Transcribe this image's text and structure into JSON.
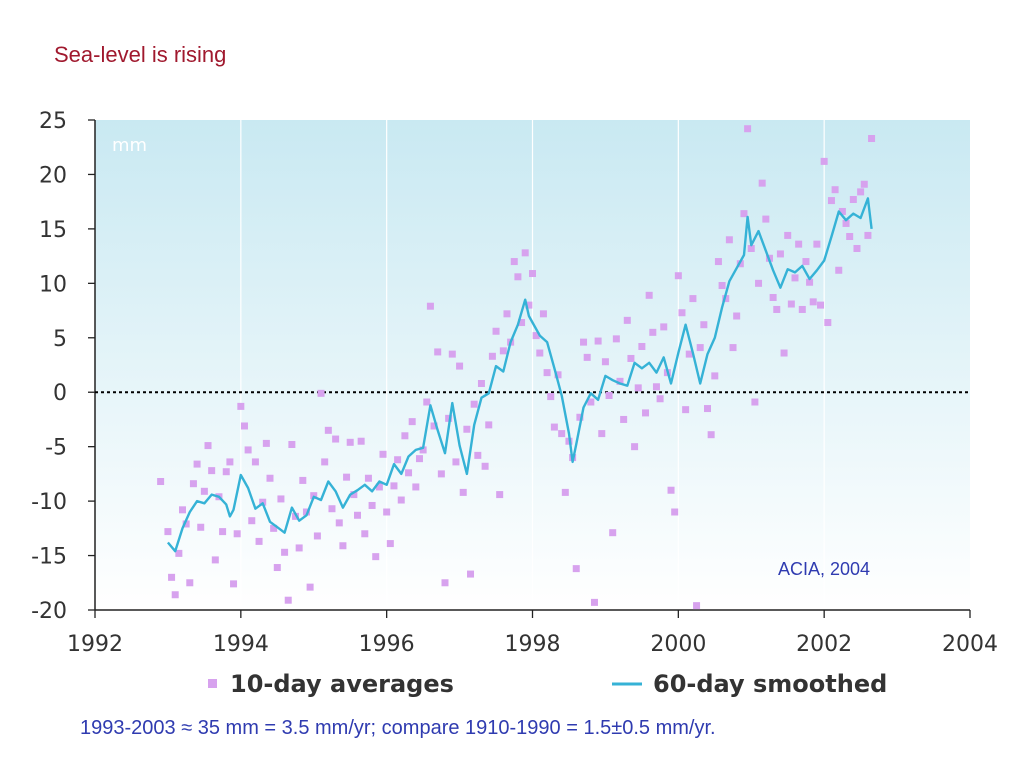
{
  "slide": {
    "title": "Sea-level is rising",
    "footnote": "1993-2003 ≈ 35 mm = 3.5 mm/yr;  compare 1910-1990 = 1.5±0.5 mm/yr."
  },
  "colors": {
    "title": "#a0192e",
    "footnote": "#2f3bb0",
    "points": "#d7a2ee",
    "line": "#35b2d6",
    "plot_top": "#c9e9f2",
    "plot_bottom": "#ffffff",
    "zero_line": "#000000"
  },
  "chart_data": {
    "type": "scatter",
    "ylabel": "mm",
    "source_label": "ACIA, 2004",
    "xlim": [
      1992,
      2004
    ],
    "ylim": [
      -20,
      25
    ],
    "x_ticks": [
      "1992",
      "1994",
      "1996",
      "1998",
      "2000",
      "2002",
      "2004"
    ],
    "x_tick_values": [
      1992,
      1994,
      1996,
      1998,
      2000,
      2002,
      2004
    ],
    "y_ticks": [
      "25",
      "20",
      "15",
      "10",
      "5",
      "0",
      "-5",
      "-10",
      "-15",
      "-20"
    ],
    "y_tick_values": [
      25,
      20,
      15,
      10,
      5,
      0,
      -5,
      -10,
      -15,
      -20
    ],
    "reference_line": {
      "y": 0,
      "style": "dotted"
    },
    "legend": {
      "position": "bottom"
    },
    "series": [
      {
        "name": "10-day averages",
        "kind": "scatter",
        "points": [
          [
            1992.9,
            -8.2
          ],
          [
            1993.0,
            -12.8
          ],
          [
            1993.05,
            -17.0
          ],
          [
            1993.1,
            -18.6
          ],
          [
            1993.15,
            -14.8
          ],
          [
            1993.2,
            -10.8
          ],
          [
            1993.25,
            -12.1
          ],
          [
            1993.3,
            -17.5
          ],
          [
            1993.35,
            -8.4
          ],
          [
            1993.4,
            -6.6
          ],
          [
            1993.45,
            -12.4
          ],
          [
            1993.5,
            -9.1
          ],
          [
            1993.55,
            -4.9
          ],
          [
            1993.6,
            -7.2
          ],
          [
            1993.65,
            -15.4
          ],
          [
            1993.7,
            -9.6
          ],
          [
            1993.75,
            -12.8
          ],
          [
            1993.8,
            -7.3
          ],
          [
            1993.85,
            -6.4
          ],
          [
            1993.9,
            -17.6
          ],
          [
            1993.95,
            -13.0
          ],
          [
            1994.0,
            -1.3
          ],
          [
            1994.05,
            -3.1
          ],
          [
            1994.1,
            -5.3
          ],
          [
            1994.15,
            -11.8
          ],
          [
            1994.2,
            -6.4
          ],
          [
            1994.25,
            -13.7
          ],
          [
            1994.3,
            -10.1
          ],
          [
            1994.35,
            -4.7
          ],
          [
            1994.4,
            -7.9
          ],
          [
            1994.45,
            -12.5
          ],
          [
            1994.5,
            -16.1
          ],
          [
            1994.55,
            -9.8
          ],
          [
            1994.6,
            -14.7
          ],
          [
            1994.65,
            -19.1
          ],
          [
            1994.7,
            -4.8
          ],
          [
            1994.75,
            -11.4
          ],
          [
            1994.8,
            -14.3
          ],
          [
            1994.85,
            -8.1
          ],
          [
            1994.9,
            -11.0
          ],
          [
            1994.95,
            -17.9
          ],
          [
            1995.0,
            -9.5
          ],
          [
            1995.05,
            -13.2
          ],
          [
            1995.1,
            -0.1
          ],
          [
            1995.15,
            -6.4
          ],
          [
            1995.2,
            -3.5
          ],
          [
            1995.25,
            -10.7
          ],
          [
            1995.3,
            -4.3
          ],
          [
            1995.35,
            -12.0
          ],
          [
            1995.4,
            -14.1
          ],
          [
            1995.45,
            -7.8
          ],
          [
            1995.5,
            -4.6
          ],
          [
            1995.55,
            -9.4
          ],
          [
            1995.6,
            -11.3
          ],
          [
            1995.65,
            -4.5
          ],
          [
            1995.7,
            -13.0
          ],
          [
            1995.75,
            -7.9
          ],
          [
            1995.8,
            -10.4
          ],
          [
            1995.85,
            -15.1
          ],
          [
            1995.9,
            -8.7
          ],
          [
            1995.95,
            -5.7
          ],
          [
            1996.0,
            -11.0
          ],
          [
            1996.05,
            -13.9
          ],
          [
            1996.1,
            -8.6
          ],
          [
            1996.15,
            -6.2
          ],
          [
            1996.2,
            -9.9
          ],
          [
            1996.25,
            -4.0
          ],
          [
            1996.3,
            -7.4
          ],
          [
            1996.35,
            -2.7
          ],
          [
            1996.4,
            -8.7
          ],
          [
            1996.45,
            -6.1
          ],
          [
            1996.5,
            -5.3
          ],
          [
            1996.55,
            -0.9
          ],
          [
            1996.6,
            7.9
          ],
          [
            1996.65,
            -3.1
          ],
          [
            1996.7,
            3.7
          ],
          [
            1996.75,
            -7.5
          ],
          [
            1996.8,
            -17.5
          ],
          [
            1996.85,
            -2.4
          ],
          [
            1996.9,
            3.5
          ],
          [
            1996.95,
            -6.4
          ],
          [
            1997.0,
            2.4
          ],
          [
            1997.05,
            -9.2
          ],
          [
            1997.1,
            -3.4
          ],
          [
            1997.15,
            -16.7
          ],
          [
            1997.2,
            -1.1
          ],
          [
            1997.25,
            -5.8
          ],
          [
            1997.3,
            0.8
          ],
          [
            1997.35,
            -6.8
          ],
          [
            1997.4,
            -3.0
          ],
          [
            1997.45,
            3.3
          ],
          [
            1997.5,
            5.6
          ],
          [
            1997.55,
            -9.4
          ],
          [
            1997.6,
            3.8
          ],
          [
            1997.65,
            7.2
          ],
          [
            1997.7,
            4.6
          ],
          [
            1997.75,
            12.0
          ],
          [
            1997.8,
            10.6
          ],
          [
            1997.85,
            6.4
          ],
          [
            1997.9,
            12.8
          ],
          [
            1997.95,
            8.0
          ],
          [
            1998.0,
            10.9
          ],
          [
            1998.05,
            5.2
          ],
          [
            1998.1,
            3.6
          ],
          [
            1998.15,
            7.2
          ],
          [
            1998.2,
            1.8
          ],
          [
            1998.25,
            -0.4
          ],
          [
            1998.3,
            -3.2
          ],
          [
            1998.35,
            1.6
          ],
          [
            1998.4,
            -3.8
          ],
          [
            1998.45,
            -9.2
          ],
          [
            1998.5,
            -4.5
          ],
          [
            1998.55,
            -6.0
          ],
          [
            1998.6,
            -16.2
          ],
          [
            1998.65,
            -2.3
          ],
          [
            1998.7,
            4.6
          ],
          [
            1998.75,
            3.2
          ],
          [
            1998.8,
            -0.9
          ],
          [
            1998.85,
            -19.3
          ],
          [
            1998.9,
            4.7
          ],
          [
            1998.95,
            -3.8
          ],
          [
            1999.0,
            2.8
          ],
          [
            1999.05,
            -0.3
          ],
          [
            1999.1,
            -12.9
          ],
          [
            1999.15,
            4.9
          ],
          [
            1999.2,
            1.0
          ],
          [
            1999.25,
            -2.5
          ],
          [
            1999.3,
            6.6
          ],
          [
            1999.35,
            3.1
          ],
          [
            1999.4,
            -5.0
          ],
          [
            1999.45,
            0.4
          ],
          [
            1999.5,
            4.2
          ],
          [
            1999.55,
            -1.9
          ],
          [
            1999.6,
            8.9
          ],
          [
            1999.65,
            5.5
          ],
          [
            1999.7,
            0.5
          ],
          [
            1999.75,
            -0.6
          ],
          [
            1999.8,
            6.0
          ],
          [
            1999.85,
            1.8
          ],
          [
            1999.9,
            -9.0
          ],
          [
            1999.95,
            -11.0
          ],
          [
            2000.0,
            10.7
          ],
          [
            2000.05,
            7.3
          ],
          [
            2000.1,
            -1.6
          ],
          [
            2000.15,
            3.5
          ],
          [
            2000.2,
            8.6
          ],
          [
            2000.25,
            -19.6
          ],
          [
            2000.3,
            4.1
          ],
          [
            2000.35,
            6.2
          ],
          [
            2000.4,
            -1.5
          ],
          [
            2000.45,
            -3.9
          ],
          [
            2000.5,
            1.5
          ],
          [
            2000.55,
            12.0
          ],
          [
            2000.6,
            9.8
          ],
          [
            2000.65,
            8.6
          ],
          [
            2000.7,
            14.0
          ],
          [
            2000.75,
            4.1
          ],
          [
            2000.8,
            7.0
          ],
          [
            2000.85,
            11.8
          ],
          [
            2000.9,
            16.4
          ],
          [
            2000.95,
            24.2
          ],
          [
            2001.0,
            13.2
          ],
          [
            2001.05,
            -0.9
          ],
          [
            2001.1,
            10.0
          ],
          [
            2001.15,
            19.2
          ],
          [
            2001.2,
            15.9
          ],
          [
            2001.25,
            12.3
          ],
          [
            2001.3,
            8.7
          ],
          [
            2001.35,
            7.6
          ],
          [
            2001.4,
            12.7
          ],
          [
            2001.45,
            3.6
          ],
          [
            2001.5,
            14.4
          ],
          [
            2001.55,
            8.1
          ],
          [
            2001.6,
            10.5
          ],
          [
            2001.65,
            13.6
          ],
          [
            2001.7,
            7.6
          ],
          [
            2001.75,
            12.0
          ],
          [
            2001.8,
            10.1
          ],
          [
            2001.85,
            8.3
          ],
          [
            2001.9,
            13.6
          ],
          [
            2001.95,
            8.0
          ],
          [
            2002.0,
            21.2
          ],
          [
            2002.05,
            6.4
          ],
          [
            2002.1,
            17.6
          ],
          [
            2002.15,
            18.6
          ],
          [
            2002.2,
            11.2
          ],
          [
            2002.25,
            16.6
          ],
          [
            2002.3,
            15.5
          ],
          [
            2002.35,
            14.3
          ],
          [
            2002.4,
            17.7
          ],
          [
            2002.45,
            13.2
          ],
          [
            2002.5,
            18.4
          ],
          [
            2002.55,
            19.1
          ],
          [
            2002.6,
            14.4
          ],
          [
            2002.65,
            23.3
          ]
        ]
      },
      {
        "name": "60-day smoothed",
        "kind": "line",
        "points": [
          [
            1993.0,
            -13.8
          ],
          [
            1993.1,
            -14.6
          ],
          [
            1993.2,
            -12.5
          ],
          [
            1993.3,
            -11.0
          ],
          [
            1993.4,
            -10.0
          ],
          [
            1993.5,
            -10.2
          ],
          [
            1993.6,
            -9.4
          ],
          [
            1993.7,
            -9.6
          ],
          [
            1993.8,
            -10.3
          ],
          [
            1993.85,
            -11.4
          ],
          [
            1993.9,
            -10.8
          ],
          [
            1994.0,
            -7.6
          ],
          [
            1994.1,
            -8.8
          ],
          [
            1994.2,
            -10.7
          ],
          [
            1994.3,
            -10.2
          ],
          [
            1994.4,
            -11.9
          ],
          [
            1994.5,
            -12.4
          ],
          [
            1994.6,
            -12.9
          ],
          [
            1994.7,
            -10.6
          ],
          [
            1994.8,
            -11.8
          ],
          [
            1994.9,
            -11.3
          ],
          [
            1995.0,
            -9.6
          ],
          [
            1995.1,
            -9.9
          ],
          [
            1995.2,
            -8.2
          ],
          [
            1995.3,
            -9.1
          ],
          [
            1995.4,
            -10.6
          ],
          [
            1995.5,
            -9.4
          ],
          [
            1995.6,
            -9.0
          ],
          [
            1995.7,
            -8.5
          ],
          [
            1995.8,
            -9.1
          ],
          [
            1995.9,
            -8.2
          ],
          [
            1996.0,
            -8.5
          ],
          [
            1996.1,
            -6.6
          ],
          [
            1996.2,
            -7.5
          ],
          [
            1996.3,
            -5.9
          ],
          [
            1996.4,
            -5.3
          ],
          [
            1996.5,
            -5.1
          ],
          [
            1996.6,
            -1.2
          ],
          [
            1996.7,
            -3.5
          ],
          [
            1996.8,
            -5.6
          ],
          [
            1996.9,
            -1.0
          ],
          [
            1997.0,
            -4.9
          ],
          [
            1997.1,
            -7.5
          ],
          [
            1997.2,
            -3.0
          ],
          [
            1997.3,
            -0.5
          ],
          [
            1997.4,
            -0.1
          ],
          [
            1997.5,
            2.4
          ],
          [
            1997.6,
            1.9
          ],
          [
            1997.7,
            4.6
          ],
          [
            1997.8,
            6.2
          ],
          [
            1997.9,
            8.5
          ],
          [
            1997.95,
            7.0
          ],
          [
            1998.0,
            6.4
          ],
          [
            1998.1,
            5.2
          ],
          [
            1998.2,
            4.6
          ],
          [
            1998.3,
            2.2
          ],
          [
            1998.4,
            -0.3
          ],
          [
            1998.5,
            -3.8
          ],
          [
            1998.55,
            -6.4
          ],
          [
            1998.6,
            -4.8
          ],
          [
            1998.7,
            -1.4
          ],
          [
            1998.8,
            -0.1
          ],
          [
            1998.9,
            -0.7
          ],
          [
            1999.0,
            1.5
          ],
          [
            1999.1,
            1.1
          ],
          [
            1999.2,
            0.8
          ],
          [
            1999.3,
            0.6
          ],
          [
            1999.4,
            2.7
          ],
          [
            1999.5,
            2.2
          ],
          [
            1999.6,
            2.7
          ],
          [
            1999.7,
            1.8
          ],
          [
            1999.8,
            3.2
          ],
          [
            1999.9,
            0.8
          ],
          [
            2000.0,
            3.6
          ],
          [
            2000.1,
            6.2
          ],
          [
            2000.2,
            3.6
          ],
          [
            2000.3,
            0.8
          ],
          [
            2000.4,
            3.5
          ],
          [
            2000.5,
            5.0
          ],
          [
            2000.6,
            7.8
          ],
          [
            2000.7,
            10.2
          ],
          [
            2000.8,
            11.4
          ],
          [
            2000.9,
            12.6
          ],
          [
            2000.95,
            16.1
          ],
          [
            2001.0,
            13.5
          ],
          [
            2001.1,
            14.8
          ],
          [
            2001.2,
            13.0
          ],
          [
            2001.3,
            11.2
          ],
          [
            2001.4,
            9.6
          ],
          [
            2001.5,
            11.3
          ],
          [
            2001.6,
            11.0
          ],
          [
            2001.7,
            11.6
          ],
          [
            2001.8,
            10.4
          ],
          [
            2001.9,
            11.2
          ],
          [
            2002.0,
            12.1
          ],
          [
            2002.1,
            14.3
          ],
          [
            2002.2,
            16.6
          ],
          [
            2002.3,
            15.8
          ],
          [
            2002.4,
            16.4
          ],
          [
            2002.5,
            16.0
          ],
          [
            2002.6,
            17.8
          ],
          [
            2002.65,
            15.0
          ]
        ]
      }
    ]
  }
}
